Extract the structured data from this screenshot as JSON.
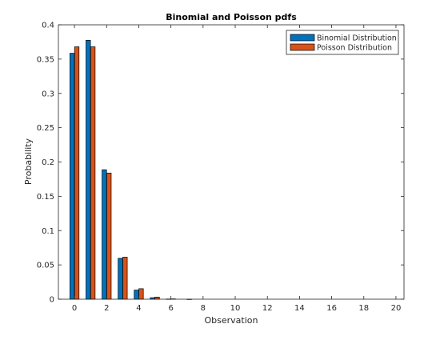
{
  "chart_data": {
    "type": "bar",
    "title": "Binomial and Poisson pdfs",
    "xlabel": "Observation",
    "ylabel": "Probability",
    "xlim": [
      -1,
      20.5
    ],
    "ylim": [
      0,
      0.4
    ],
    "xticks": [
      0,
      2,
      4,
      6,
      8,
      10,
      12,
      14,
      16,
      18,
      20
    ],
    "yticks": [
      0,
      0.05,
      0.1,
      0.15,
      0.2,
      0.25,
      0.3,
      0.35,
      0.4
    ],
    "xtick_labels": [
      "0",
      "2",
      "4",
      "6",
      "8",
      "10",
      "12",
      "14",
      "16",
      "18",
      "20"
    ],
    "ytick_labels": [
      "0",
      "0.05",
      "0.1",
      "0.15",
      "0.2",
      "0.25",
      "0.3",
      "0.35",
      "0.4"
    ],
    "x": [
      0,
      1,
      2,
      3,
      4,
      5,
      6,
      7,
      8,
      9,
      10,
      11,
      12,
      13,
      14,
      15,
      16,
      17,
      18,
      19,
      20
    ],
    "series": [
      {
        "name": "Binomial Distribution",
        "color": "#0072BD",
        "values": [
          0.3585,
          0.3774,
          0.1887,
          0.0596,
          0.0133,
          0.0022,
          0.0003,
          0.0,
          0.0,
          0.0,
          0.0,
          0.0,
          0.0,
          0.0,
          0.0,
          0.0,
          0.0,
          0.0,
          0.0,
          0.0,
          0.0
        ]
      },
      {
        "name": "Poisson Distribution",
        "color": "#D95319",
        "values": [
          0.3679,
          0.3679,
          0.1839,
          0.0613,
          0.0153,
          0.0031,
          0.0005,
          0.0001,
          0.0,
          0.0,
          0.0,
          0.0,
          0.0,
          0.0,
          0.0,
          0.0,
          0.0,
          0.0,
          0.0,
          0.0,
          0.0
        ]
      }
    ],
    "legend_position": "top-right",
    "grid": false
  }
}
